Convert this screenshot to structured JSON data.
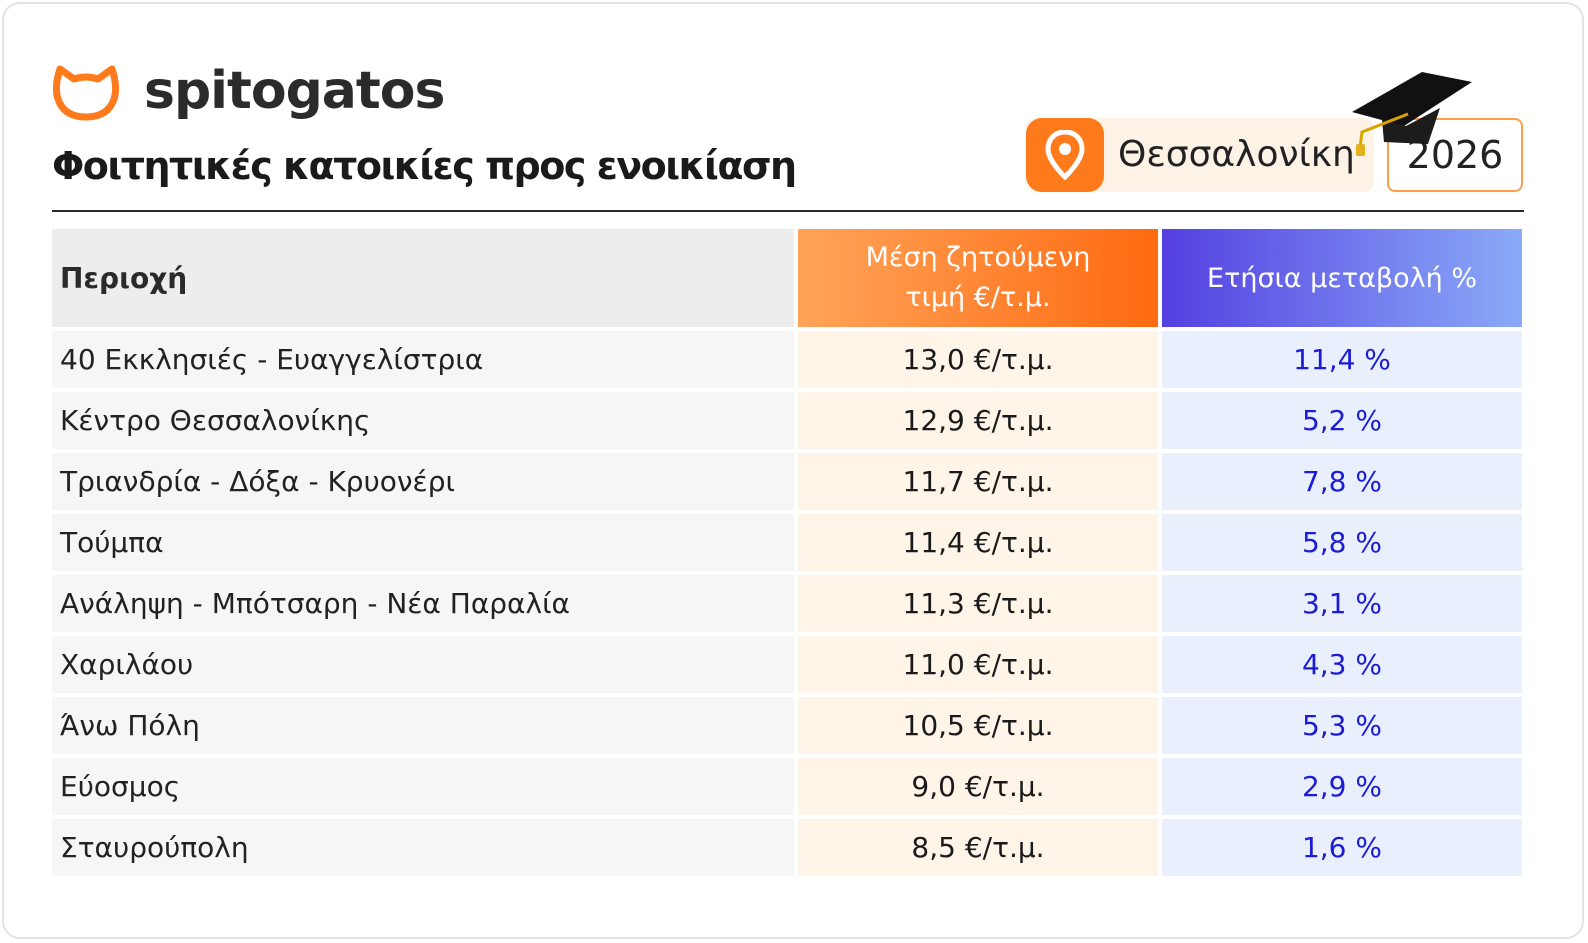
{
  "brand": {
    "name": "spitogatos",
    "color": "#ff7a1a"
  },
  "title": "Φοιτητικές κατοικίες προς ενοικίαση",
  "location": "Θεσσαλονίκη",
  "year": "2026",
  "colors": {
    "price_accent": "#ff6a10",
    "change_accent": "#5440e0",
    "change_text": "#1c1cd6"
  },
  "chart_data": {
    "type": "table",
    "columns": [
      "Περιοχή",
      "Μέση ζητούμενη τιμή €/τ.μ.",
      "Ετήσια μεταβολή %"
    ],
    "column_header_lines": {
      "price": [
        "Μέση ζητούμενη",
        "τιμή €/τ.μ."
      ]
    },
    "rows": [
      {
        "area": "40 Εκκλησιές - Ευαγγελίστρια",
        "price": "13,0 €/τ.μ.",
        "change": "11,4 %"
      },
      {
        "area": "Κέντρο Θεσσαλονίκης",
        "price": "12,9 €/τ.μ.",
        "change": "5,2 %"
      },
      {
        "area": "Τριανδρία - Δόξα - Κρυονέρι",
        "price": "11,7 €/τ.μ.",
        "change": "7,8 %"
      },
      {
        "area": "Τούμπα",
        "price": "11,4 €/τ.μ.",
        "change": "5,8 %"
      },
      {
        "area": "Ανάληψη - Μπότσαρη - Νέα Παραλία",
        "price": "11,3 €/τ.μ.",
        "change": "3,1 %"
      },
      {
        "area": "Χαριλάου",
        "price": "11,0 €/τ.μ.",
        "change": "4,3 %"
      },
      {
        "area": "Άνω Πόλη",
        "price": "10,5 €/τ.μ.",
        "change": "5,3 %"
      },
      {
        "area": "Εύοσμος",
        "price": "9,0 €/τ.μ.",
        "change": "2,9 %"
      },
      {
        "area": "Σταυρούπολη",
        "price": "8,5 €/τ.μ.",
        "change": "1,6 %"
      }
    ]
  }
}
